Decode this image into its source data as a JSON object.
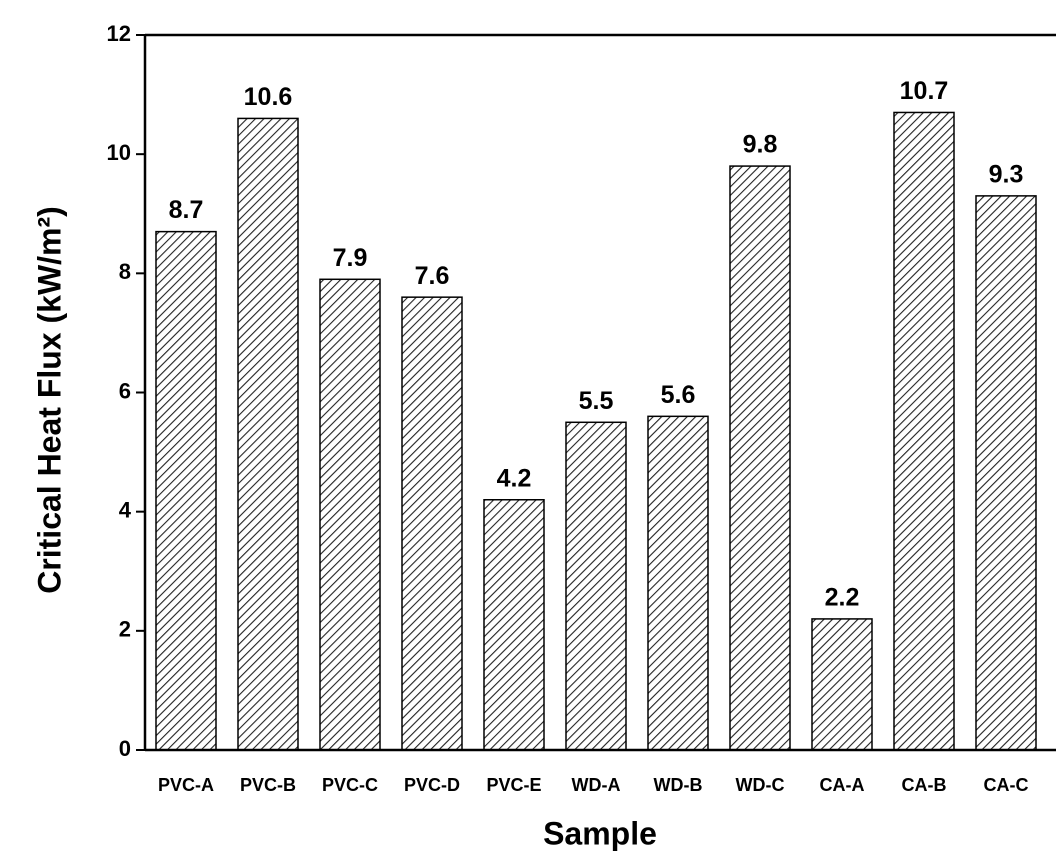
{
  "chart_data": {
    "type": "bar",
    "ylabel": "Critical Heat Flux (kW/m²)",
    "xlabel": "Sample",
    "categories": [
      "PVC-A",
      "PVC-B",
      "PVC-C",
      "PVC-D",
      "PVC-E",
      "WD-A",
      "WD-B",
      "WD-C",
      "CA-A",
      "CA-B",
      "CA-C"
    ],
    "values": [
      8.7,
      10.6,
      7.9,
      7.6,
      4.2,
      5.5,
      5.6,
      9.8,
      2.2,
      10.7,
      9.3
    ],
    "color": "#000000",
    "ylim": [
      0,
      12
    ],
    "yticks": [
      0,
      2,
      4,
      6,
      8,
      10,
      12
    ]
  }
}
